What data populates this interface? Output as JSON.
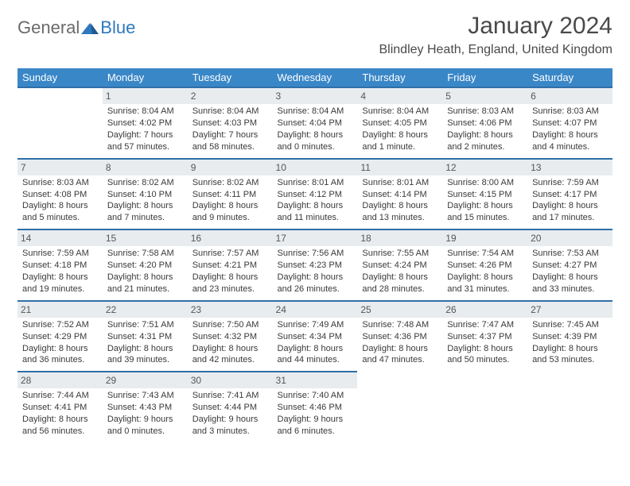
{
  "logo": {
    "general": "General",
    "blue": "Blue"
  },
  "title": "January 2024",
  "location": "Blindley Heath, England, United Kingdom",
  "day_names": [
    "Sunday",
    "Monday",
    "Tuesday",
    "Wednesday",
    "Thursday",
    "Friday",
    "Saturday"
  ],
  "colors": {
    "header_bg": "#3a87c8",
    "header_text": "#ffffff",
    "row_divider": "#2f6fa8",
    "daynum_bg": "#e9ecef",
    "text": "#3a3a3a",
    "logo_blue": "#2e78bd",
    "logo_grey": "#6a6a6a"
  },
  "grid": [
    [
      null,
      {
        "n": "1",
        "sr": "Sunrise: 8:04 AM",
        "ss": "Sunset: 4:02 PM",
        "d1": "Daylight: 7 hours",
        "d2": "and 57 minutes."
      },
      {
        "n": "2",
        "sr": "Sunrise: 8:04 AM",
        "ss": "Sunset: 4:03 PM",
        "d1": "Daylight: 7 hours",
        "d2": "and 58 minutes."
      },
      {
        "n": "3",
        "sr": "Sunrise: 8:04 AM",
        "ss": "Sunset: 4:04 PM",
        "d1": "Daylight: 8 hours",
        "d2": "and 0 minutes."
      },
      {
        "n": "4",
        "sr": "Sunrise: 8:04 AM",
        "ss": "Sunset: 4:05 PM",
        "d1": "Daylight: 8 hours",
        "d2": "and 1 minute."
      },
      {
        "n": "5",
        "sr": "Sunrise: 8:03 AM",
        "ss": "Sunset: 4:06 PM",
        "d1": "Daylight: 8 hours",
        "d2": "and 2 minutes."
      },
      {
        "n": "6",
        "sr": "Sunrise: 8:03 AM",
        "ss": "Sunset: 4:07 PM",
        "d1": "Daylight: 8 hours",
        "d2": "and 4 minutes."
      }
    ],
    [
      {
        "n": "7",
        "sr": "Sunrise: 8:03 AM",
        "ss": "Sunset: 4:08 PM",
        "d1": "Daylight: 8 hours",
        "d2": "and 5 minutes."
      },
      {
        "n": "8",
        "sr": "Sunrise: 8:02 AM",
        "ss": "Sunset: 4:10 PM",
        "d1": "Daylight: 8 hours",
        "d2": "and 7 minutes."
      },
      {
        "n": "9",
        "sr": "Sunrise: 8:02 AM",
        "ss": "Sunset: 4:11 PM",
        "d1": "Daylight: 8 hours",
        "d2": "and 9 minutes."
      },
      {
        "n": "10",
        "sr": "Sunrise: 8:01 AM",
        "ss": "Sunset: 4:12 PM",
        "d1": "Daylight: 8 hours",
        "d2": "and 11 minutes."
      },
      {
        "n": "11",
        "sr": "Sunrise: 8:01 AM",
        "ss": "Sunset: 4:14 PM",
        "d1": "Daylight: 8 hours",
        "d2": "and 13 minutes."
      },
      {
        "n": "12",
        "sr": "Sunrise: 8:00 AM",
        "ss": "Sunset: 4:15 PM",
        "d1": "Daylight: 8 hours",
        "d2": "and 15 minutes."
      },
      {
        "n": "13",
        "sr": "Sunrise: 7:59 AM",
        "ss": "Sunset: 4:17 PM",
        "d1": "Daylight: 8 hours",
        "d2": "and 17 minutes."
      }
    ],
    [
      {
        "n": "14",
        "sr": "Sunrise: 7:59 AM",
        "ss": "Sunset: 4:18 PM",
        "d1": "Daylight: 8 hours",
        "d2": "and 19 minutes."
      },
      {
        "n": "15",
        "sr": "Sunrise: 7:58 AM",
        "ss": "Sunset: 4:20 PM",
        "d1": "Daylight: 8 hours",
        "d2": "and 21 minutes."
      },
      {
        "n": "16",
        "sr": "Sunrise: 7:57 AM",
        "ss": "Sunset: 4:21 PM",
        "d1": "Daylight: 8 hours",
        "d2": "and 23 minutes."
      },
      {
        "n": "17",
        "sr": "Sunrise: 7:56 AM",
        "ss": "Sunset: 4:23 PM",
        "d1": "Daylight: 8 hours",
        "d2": "and 26 minutes."
      },
      {
        "n": "18",
        "sr": "Sunrise: 7:55 AM",
        "ss": "Sunset: 4:24 PM",
        "d1": "Daylight: 8 hours",
        "d2": "and 28 minutes."
      },
      {
        "n": "19",
        "sr": "Sunrise: 7:54 AM",
        "ss": "Sunset: 4:26 PM",
        "d1": "Daylight: 8 hours",
        "d2": "and 31 minutes."
      },
      {
        "n": "20",
        "sr": "Sunrise: 7:53 AM",
        "ss": "Sunset: 4:27 PM",
        "d1": "Daylight: 8 hours",
        "d2": "and 33 minutes."
      }
    ],
    [
      {
        "n": "21",
        "sr": "Sunrise: 7:52 AM",
        "ss": "Sunset: 4:29 PM",
        "d1": "Daylight: 8 hours",
        "d2": "and 36 minutes."
      },
      {
        "n": "22",
        "sr": "Sunrise: 7:51 AM",
        "ss": "Sunset: 4:31 PM",
        "d1": "Daylight: 8 hours",
        "d2": "and 39 minutes."
      },
      {
        "n": "23",
        "sr": "Sunrise: 7:50 AM",
        "ss": "Sunset: 4:32 PM",
        "d1": "Daylight: 8 hours",
        "d2": "and 42 minutes."
      },
      {
        "n": "24",
        "sr": "Sunrise: 7:49 AM",
        "ss": "Sunset: 4:34 PM",
        "d1": "Daylight: 8 hours",
        "d2": "and 44 minutes."
      },
      {
        "n": "25",
        "sr": "Sunrise: 7:48 AM",
        "ss": "Sunset: 4:36 PM",
        "d1": "Daylight: 8 hours",
        "d2": "and 47 minutes."
      },
      {
        "n": "26",
        "sr": "Sunrise: 7:47 AM",
        "ss": "Sunset: 4:37 PM",
        "d1": "Daylight: 8 hours",
        "d2": "and 50 minutes."
      },
      {
        "n": "27",
        "sr": "Sunrise: 7:45 AM",
        "ss": "Sunset: 4:39 PM",
        "d1": "Daylight: 8 hours",
        "d2": "and 53 minutes."
      }
    ],
    [
      {
        "n": "28",
        "sr": "Sunrise: 7:44 AM",
        "ss": "Sunset: 4:41 PM",
        "d1": "Daylight: 8 hours",
        "d2": "and 56 minutes."
      },
      {
        "n": "29",
        "sr": "Sunrise: 7:43 AM",
        "ss": "Sunset: 4:43 PM",
        "d1": "Daylight: 9 hours",
        "d2": "and 0 minutes."
      },
      {
        "n": "30",
        "sr": "Sunrise: 7:41 AM",
        "ss": "Sunset: 4:44 PM",
        "d1": "Daylight: 9 hours",
        "d2": "and 3 minutes."
      },
      {
        "n": "31",
        "sr": "Sunrise: 7:40 AM",
        "ss": "Sunset: 4:46 PM",
        "d1": "Daylight: 9 hours",
        "d2": "and 6 minutes."
      },
      null,
      null,
      null
    ]
  ]
}
